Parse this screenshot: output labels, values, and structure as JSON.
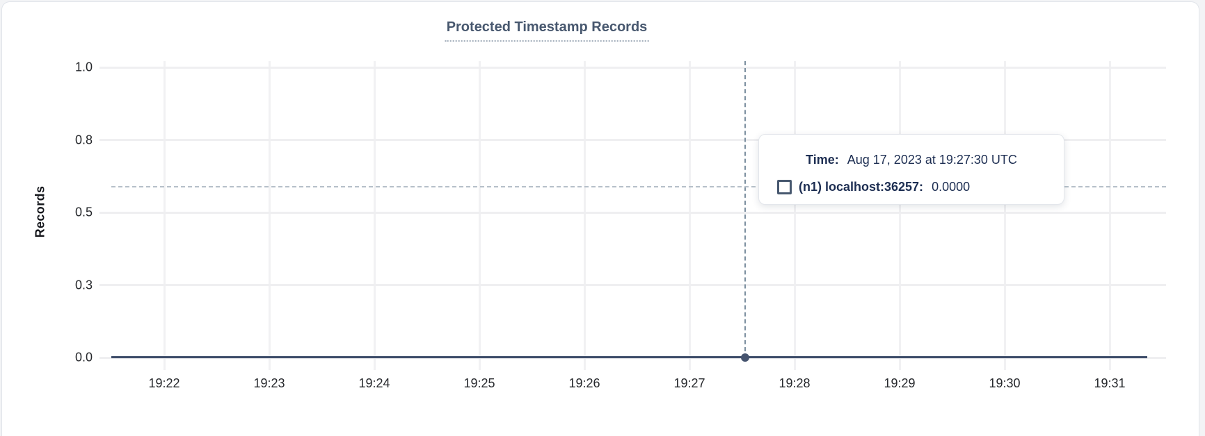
{
  "card": {
    "title": "Protected Timestamp Records"
  },
  "chart_data": {
    "type": "line",
    "title": "Protected Timestamp Records",
    "xlabel": "",
    "ylabel": "Records",
    "x_ticks": [
      "19:22",
      "19:23",
      "19:24",
      "19:25",
      "19:26",
      "19:27",
      "19:28",
      "19:29",
      "19:30",
      "19:31"
    ],
    "y_ticks": [
      "1.0",
      "0.8",
      "0.5",
      "0.3",
      "0.0"
    ],
    "ylim": [
      0,
      1
    ],
    "grid": true,
    "series": [
      {
        "name": "(n1) localhost:36257",
        "values": [
          0,
          0,
          0,
          0,
          0,
          0,
          0,
          0,
          0,
          0
        ]
      }
    ],
    "hover_point": {
      "time": "19:27:30",
      "value": 0.0
    },
    "legend_position": "tooltip"
  },
  "tooltip": {
    "time_label": "Time:",
    "time_value": "Aug 17, 2023 at 19:27:30 UTC",
    "series_label": "(n1) localhost:36257:",
    "series_value": "0.0000"
  },
  "colors": {
    "title_text": "#48586f",
    "tooltip_text": "#1d2e52",
    "data_line": "#3d4d69",
    "hover_dot": "#46546f",
    "gridline": "#f1f1f3",
    "crosshair": "#7d90a0",
    "card_border": "#e1e4ea"
  }
}
